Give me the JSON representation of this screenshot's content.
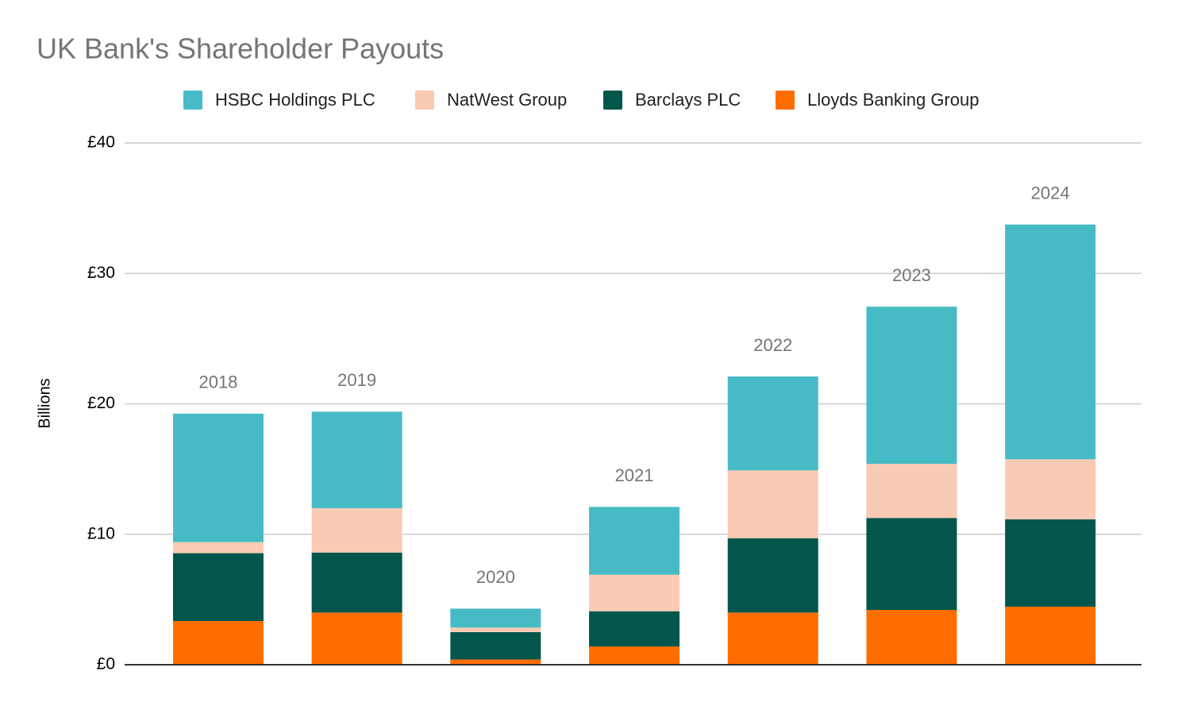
{
  "chart_data": {
    "type": "stacked_bar",
    "title": "UK Bank's Shareholder Payouts",
    "y_label": "Billions",
    "categories": [
      "2018",
      "2019",
      "2020",
      "2021",
      "2022",
      "2023",
      "2024"
    ],
    "series": [
      {
        "name": "HSBC Holdings PLC",
        "color": "#47bbc5",
        "values": [
          9.85,
          7.4,
          1.45,
          5.2,
          7.2,
          12.05,
          18.0
        ]
      },
      {
        "name": "NatWest Group",
        "color": "#f9cbb4",
        "values": [
          0.85,
          3.4,
          0.35,
          2.8,
          5.2,
          4.15,
          4.6
        ]
      },
      {
        "name": "Barclays PLC",
        "color": "#03564c",
        "values": [
          5.2,
          4.6,
          2.1,
          2.7,
          5.7,
          7.05,
          6.7
        ]
      },
      {
        "name": "Lloyds Banking Group",
        "color": "#ff6d01",
        "values": [
          3.35,
          4.0,
          0.4,
          1.4,
          4.0,
          4.2,
          4.45
        ]
      }
    ],
    "ylim": [
      0,
      40
    ],
    "yticks": [
      {
        "value": 0,
        "label": "£0"
      },
      {
        "value": 10,
        "label": "£10"
      },
      {
        "value": 20,
        "label": "£20"
      },
      {
        "value": 30,
        "label": "£30"
      },
      {
        "value": 40,
        "label": "£40"
      }
    ],
    "grid": true,
    "legend": "top"
  }
}
